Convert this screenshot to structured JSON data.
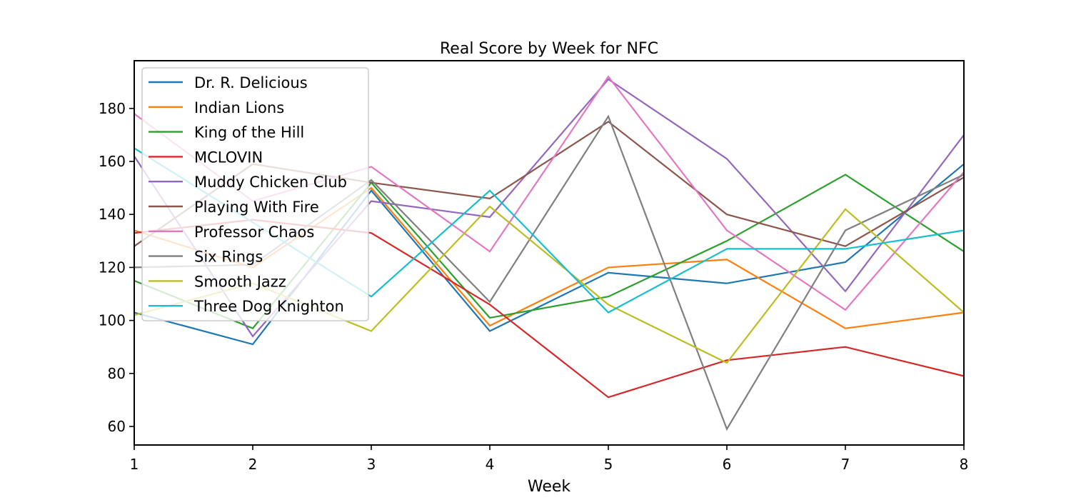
{
  "chart_data": {
    "type": "line",
    "title": "Real Score by Week for NFC",
    "xlabel": "Week",
    "ylabel": "",
    "xlim": [
      1,
      8
    ],
    "ylim": [
      53,
      198
    ],
    "x": [
      1,
      2,
      3,
      4,
      5,
      6,
      7,
      8
    ],
    "xticks": [
      "1",
      "2",
      "3",
      "4",
      "5",
      "6",
      "7",
      "8"
    ],
    "yticks": [
      60,
      80,
      100,
      120,
      140,
      160,
      180
    ],
    "grid": false,
    "legend_position": "upper-left",
    "series": [
      {
        "name": "Dr. R. Delicious",
        "color": "#1f77b4",
        "values": [
          103,
          91,
          149,
          96,
          118,
          114,
          122,
          159
        ]
      },
      {
        "name": "Indian Lions",
        "color": "#ff7f0e",
        "values": [
          134,
          120,
          150,
          98,
          120,
          123,
          97,
          103
        ]
      },
      {
        "name": "King of the Hill",
        "color": "#2ca02c",
        "values": [
          115,
          97,
          152,
          101,
          109,
          130,
          155,
          126
        ]
      },
      {
        "name": "MCLOVIN",
        "color": "#d62728",
        "values": [
          133,
          138,
          133,
          106,
          71,
          85,
          90,
          79
        ]
      },
      {
        "name": "Muddy Chicken Club",
        "color": "#9467bd",
        "values": [
          162,
          94,
          145,
          139,
          191,
          161,
          111,
          170
        ]
      },
      {
        "name": "Playing With Fire",
        "color": "#8c564b",
        "values": [
          128,
          159,
          152,
          146,
          175,
          140,
          128,
          154
        ]
      },
      {
        "name": "Professor Chaos",
        "color": "#e377c2",
        "values": [
          178,
          145,
          158,
          126,
          192,
          134,
          104,
          156
        ]
      },
      {
        "name": "Six Rings",
        "color": "#7f7f7f",
        "values": [
          120,
          121,
          153,
          107,
          177,
          59,
          134,
          155
        ]
      },
      {
        "name": "Smooth Jazz",
        "color": "#bcbd22",
        "values": [
          102,
          114,
          96,
          143,
          106,
          84,
          142,
          103
        ]
      },
      {
        "name": "Three Dog Knighton",
        "color": "#17becf",
        "values": [
          165,
          137,
          109,
          149,
          103,
          127,
          127,
          134
        ]
      }
    ]
  }
}
